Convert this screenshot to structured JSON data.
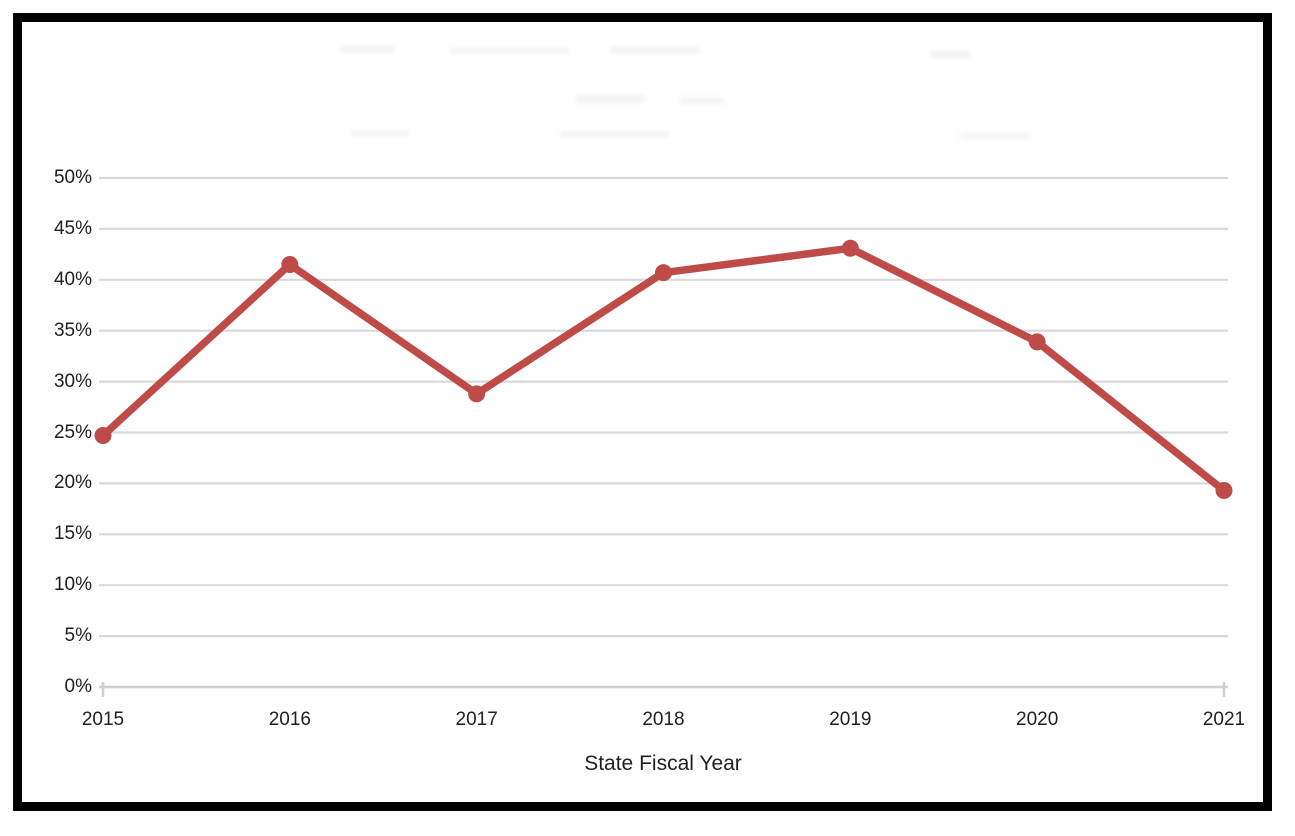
{
  "chart_data": {
    "type": "line",
    "title": "",
    "categories": [
      "2015",
      "2016",
      "2017",
      "2018",
      "2019",
      "2020",
      "2021"
    ],
    "values": [
      24.7,
      41.5,
      28.8,
      40.7,
      43.1,
      33.9,
      19.3
    ],
    "xlabel": "State Fiscal Year",
    "ylabel": "",
    "ylim": [
      0,
      50
    ],
    "ytick_step": 5,
    "ytick_labels": [
      "0%",
      "5%",
      "10%",
      "15%",
      "20%",
      "25%",
      "30%",
      "35%",
      "40%",
      "45%",
      "50%"
    ],
    "grid": true,
    "legend": "none",
    "colors": {
      "line": "#BE4B48",
      "marker": "#BE4B48",
      "gridline": "#D9D9D9",
      "axis_line": "#CFCFCF",
      "text": "#1F1F1F",
      "frame_border": "#000000"
    }
  }
}
